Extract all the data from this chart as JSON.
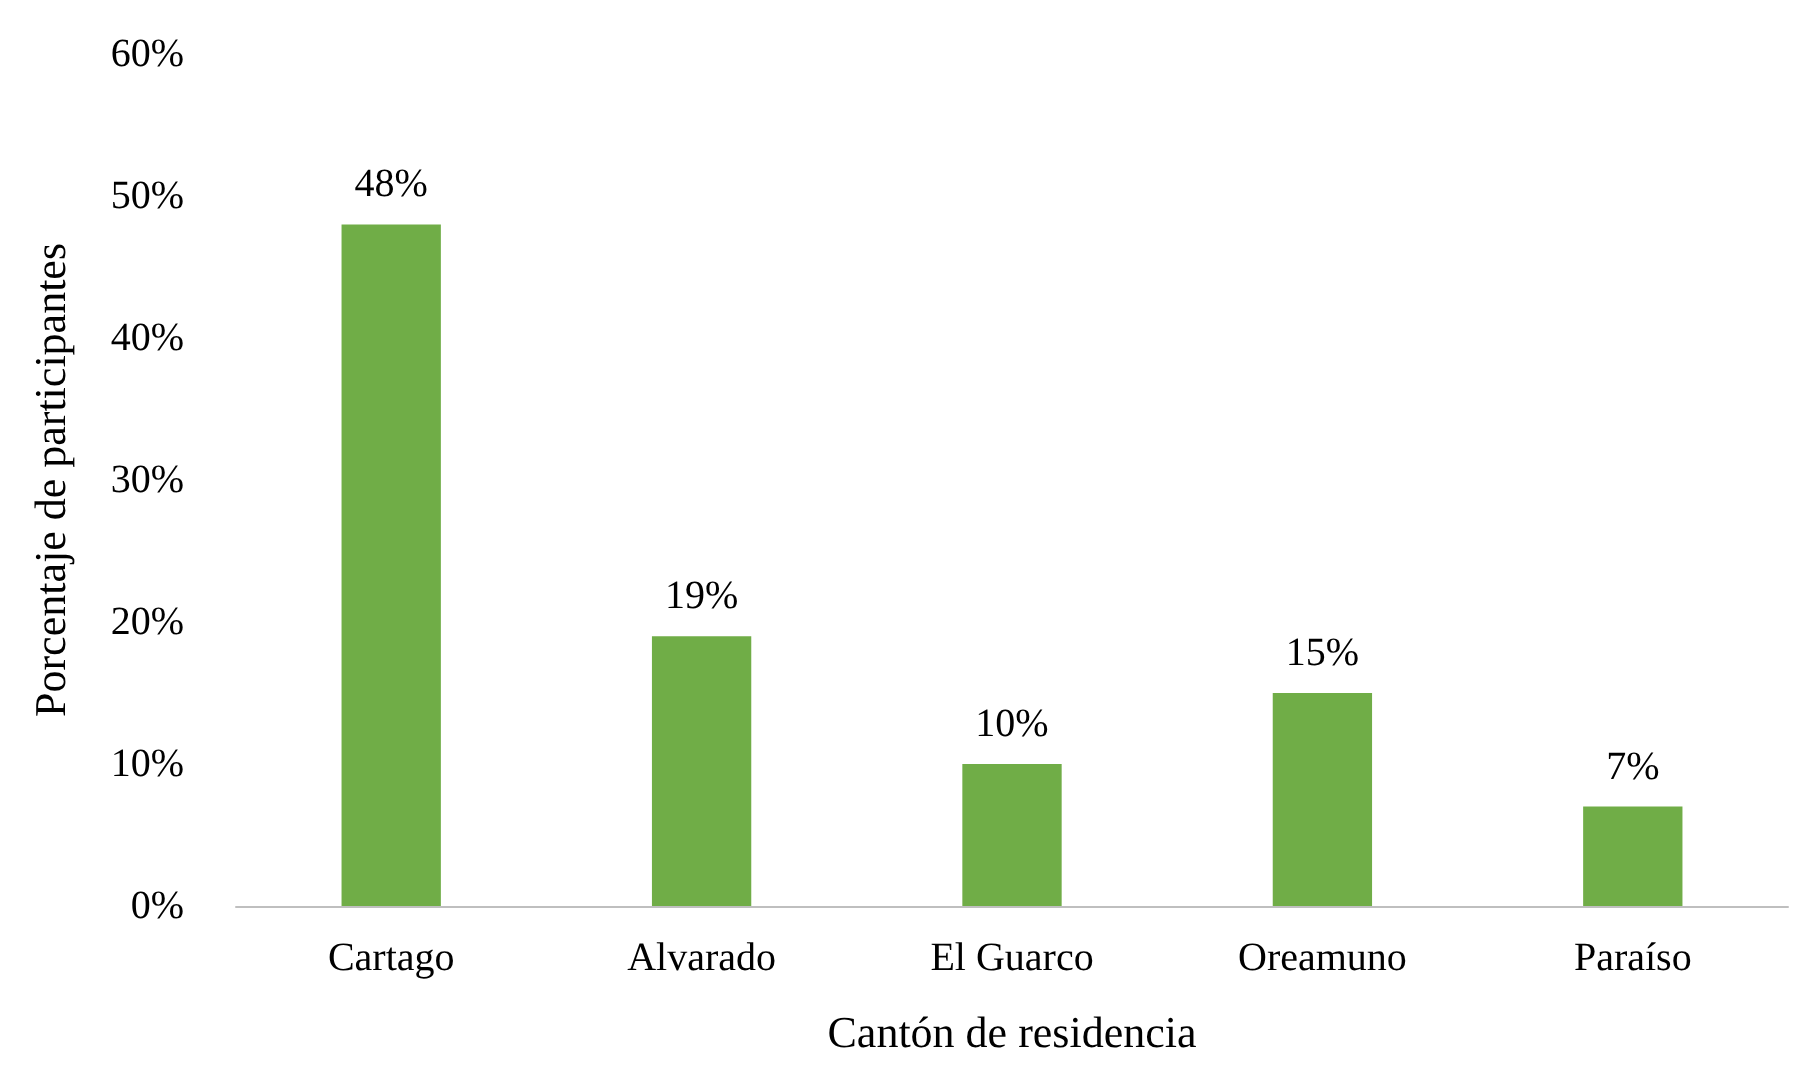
{
  "chart_data": {
    "type": "bar",
    "xlabel": "Cantón de residencia",
    "ylabel": "Porcentaje de participantes",
    "categories": [
      "Cartago",
      "Alvarado",
      "El Guarco",
      "Oreamuno",
      "Paraíso"
    ],
    "values": [
      48,
      19,
      10,
      15,
      7
    ],
    "value_labels": [
      "48%",
      "19%",
      "10%",
      "15%",
      "7%"
    ],
    "color": "#70ad47",
    "ylim": [
      0,
      60
    ],
    "yticks": [
      {
        "value": 0,
        "label": "0%"
      },
      {
        "value": 10,
        "label": "10%"
      },
      {
        "value": 20,
        "label": "20%"
      },
      {
        "value": 30,
        "label": "30%"
      },
      {
        "value": 40,
        "label": "40%"
      },
      {
        "value": 50,
        "label": "50%"
      },
      {
        "value": 60,
        "label": "60%"
      }
    ],
    "grid": false
  }
}
